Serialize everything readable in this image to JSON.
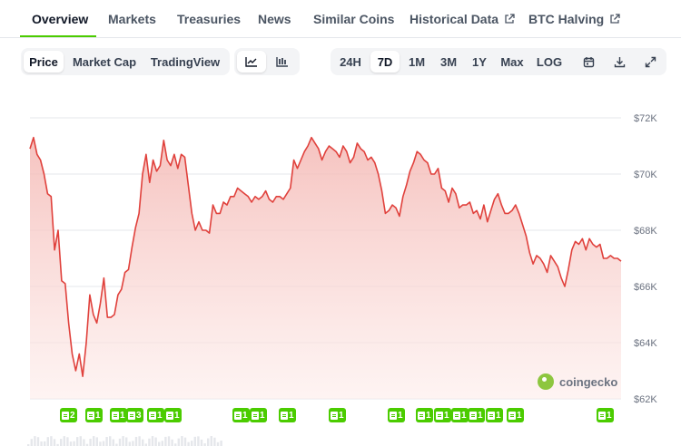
{
  "nav": {
    "tabs": [
      {
        "label": "Overview",
        "active": true,
        "external": false
      },
      {
        "label": "Markets",
        "active": false,
        "external": false
      },
      {
        "label": "Treasuries",
        "active": false,
        "external": false
      },
      {
        "label": "News",
        "active": false,
        "external": false
      },
      {
        "label": "Similar Coins",
        "active": false,
        "external": false
      },
      {
        "label": "Historical Data",
        "active": false,
        "external": true
      },
      {
        "label": "BTC Halving",
        "active": false,
        "external": true
      }
    ]
  },
  "chart_type_tabs": [
    {
      "label": "Price",
      "active": true
    },
    {
      "label": "Market Cap",
      "active": false
    },
    {
      "label": "TradingView",
      "active": false
    }
  ],
  "view_toggle": {
    "line_icon": "line-chart-icon",
    "candle_icon": "candlestick-icon",
    "active": "line"
  },
  "range_tabs": [
    {
      "label": "24H",
      "active": false
    },
    {
      "label": "7D",
      "active": true
    },
    {
      "label": "1M",
      "active": false
    },
    {
      "label": "3M",
      "active": false
    },
    {
      "label": "1Y",
      "active": false
    },
    {
      "label": "Max",
      "active": false
    },
    {
      "label": "LOG",
      "active": false
    }
  ],
  "toolbar_icons": [
    "calendar-icon",
    "download-icon",
    "expand-icon"
  ],
  "watermark": "coingecko",
  "colors": {
    "accent": "#4bcc00",
    "line": "#e0413c",
    "fill": "#fde2e0"
  },
  "markers": [
    {
      "count": "2"
    },
    {
      "count": "1"
    },
    {
      "count": "1"
    },
    {
      "count": "3"
    },
    {
      "count": "1"
    },
    {
      "count": "1"
    },
    {
      "count": "1"
    },
    {
      "count": "1"
    },
    {
      "count": "1"
    },
    {
      "count": "1"
    },
    {
      "count": "1"
    },
    {
      "count": "1"
    },
    {
      "count": "1"
    },
    {
      "count": "1"
    },
    {
      "count": "1"
    },
    {
      "count": "1"
    },
    {
      "count": "1"
    },
    {
      "count": "1"
    }
  ],
  "chart_data": {
    "type": "area",
    "title": "",
    "xlabel": "",
    "ylabel": "",
    "ylim": [
      62000,
      72000
    ],
    "y_ticks": [
      "$72K",
      "$70K",
      "$68K",
      "$66K",
      "$64K",
      "$62K"
    ],
    "y_tick_values": [
      72000,
      70000,
      68000,
      66000,
      64000,
      62000
    ],
    "grid": true,
    "values": [
      70900,
      71300,
      70700,
      70500,
      70000,
      69300,
      69200,
      67300,
      68000,
      66200,
      66100,
      64700,
      63600,
      63000,
      63600,
      62800,
      64000,
      65700,
      65000,
      64700,
      65400,
      66300,
      64900,
      64900,
      65000,
      65700,
      65900,
      66500,
      66600,
      67400,
      68100,
      68600,
      70000,
      70700,
      69700,
      70500,
      70100,
      70300,
      71200,
      70500,
      70300,
      70700,
      70200,
      70700,
      70600,
      69600,
      68600,
      68000,
      68300,
      68000,
      68000,
      67900,
      68900,
      68600,
      68600,
      69000,
      68900,
      69200,
      69200,
      69500,
      69400,
      69300,
      69200,
      69000,
      69200,
      69100,
      69200,
      69400,
      69100,
      69000,
      69200,
      69200,
      69100,
      69300,
      69500,
      70500,
      70200,
      70500,
      70800,
      71000,
      71300,
      71100,
      70900,
      70500,
      70800,
      71000,
      70900,
      70800,
      70600,
      71000,
      70800,
      70400,
      70600,
      71100,
      70900,
      70800,
      70500,
      70600,
      70400,
      70000,
      69400,
      68600,
      68700,
      68900,
      68800,
      68500,
      69200,
      69600,
      70100,
      70400,
      70800,
      70700,
      70500,
      70400,
      70000,
      70000,
      70200,
      69500,
      69400,
      69000,
      69500,
      69300,
      68800,
      68900,
      68900,
      69000,
      68600,
      68700,
      68400,
      68900,
      68300,
      68700,
      69100,
      69300,
      68900,
      68600,
      68600,
      68700,
      68900,
      68600,
      68200,
      67800,
      67200,
      66800,
      67100,
      67000,
      66800,
      66500,
      67100,
      66900,
      66700,
      66300,
      66000,
      66600,
      67300,
      67600,
      67500,
      67700,
      67300,
      67700,
      67500,
      67400,
      67500,
      67000,
      67000,
      67100,
      67000,
      67000,
      66900
    ]
  }
}
